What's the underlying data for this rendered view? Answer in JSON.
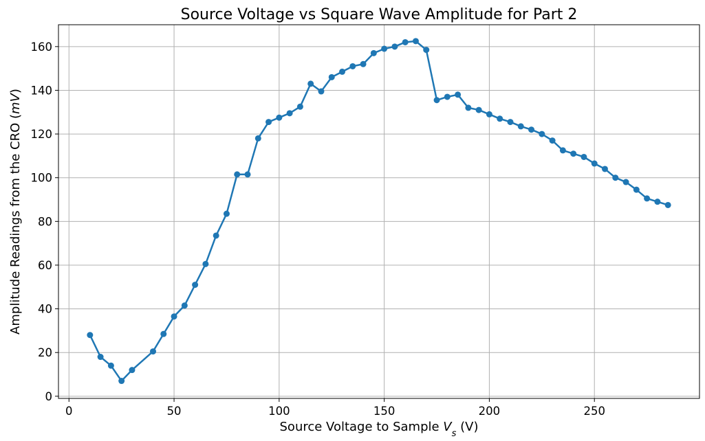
{
  "chart_data": {
    "type": "line",
    "title": "Source Voltage vs Square Wave Amplitude for Part 2",
    "xlabel": "Source Voltage to Sample V_s (V)",
    "xlabel_parts": {
      "before": "Source Voltage to Sample ",
      "var": "V",
      "sub": "s",
      "after": " (V)"
    },
    "ylabel": "Amplitude Readings from the CRO (mV)",
    "ylabel_parts": {
      "before": "Amplitude Readings from the CRO (",
      "var": "mV",
      "after": ")"
    },
    "xlim": [
      -5,
      300
    ],
    "ylim": [
      -1,
      170
    ],
    "xticks": [
      0,
      50,
      100,
      150,
      200,
      250
    ],
    "yticks": [
      0,
      20,
      40,
      60,
      80,
      100,
      120,
      140,
      160
    ],
    "grid": true,
    "color": "#1f77b4",
    "marker": "circle",
    "series": [
      {
        "x": [
          10,
          15,
          20,
          25,
          30,
          40,
          45,
          50,
          55,
          60,
          65,
          70,
          75,
          80,
          85,
          90,
          95,
          100,
          105,
          110,
          115,
          120,
          125,
          130,
          135,
          140,
          145,
          150,
          155,
          160,
          165,
          170,
          175,
          180,
          185,
          190,
          195,
          200,
          205,
          210,
          215,
          220,
          225,
          230,
          235,
          240,
          245,
          250,
          255,
          260,
          265,
          270,
          275,
          280,
          285
        ],
        "y": [
          28,
          18,
          14,
          7,
          12,
          20.5,
          28.5,
          36.5,
          41.5,
          51,
          60.5,
          73.5,
          83.5,
          101.5,
          101.5,
          118,
          125.5,
          127.5,
          129.5,
          132.5,
          143,
          139.5,
          146,
          148.5,
          151,
          152,
          157,
          159,
          160,
          162,
          162.5,
          158.5,
          135.5,
          137,
          138,
          132,
          131,
          129,
          127,
          125.5,
          123.5,
          122,
          120,
          117,
          112.5,
          111,
          109.5,
          106.5,
          104,
          100,
          98,
          94.5,
          90.5,
          89,
          87.5
        ]
      }
    ]
  }
}
